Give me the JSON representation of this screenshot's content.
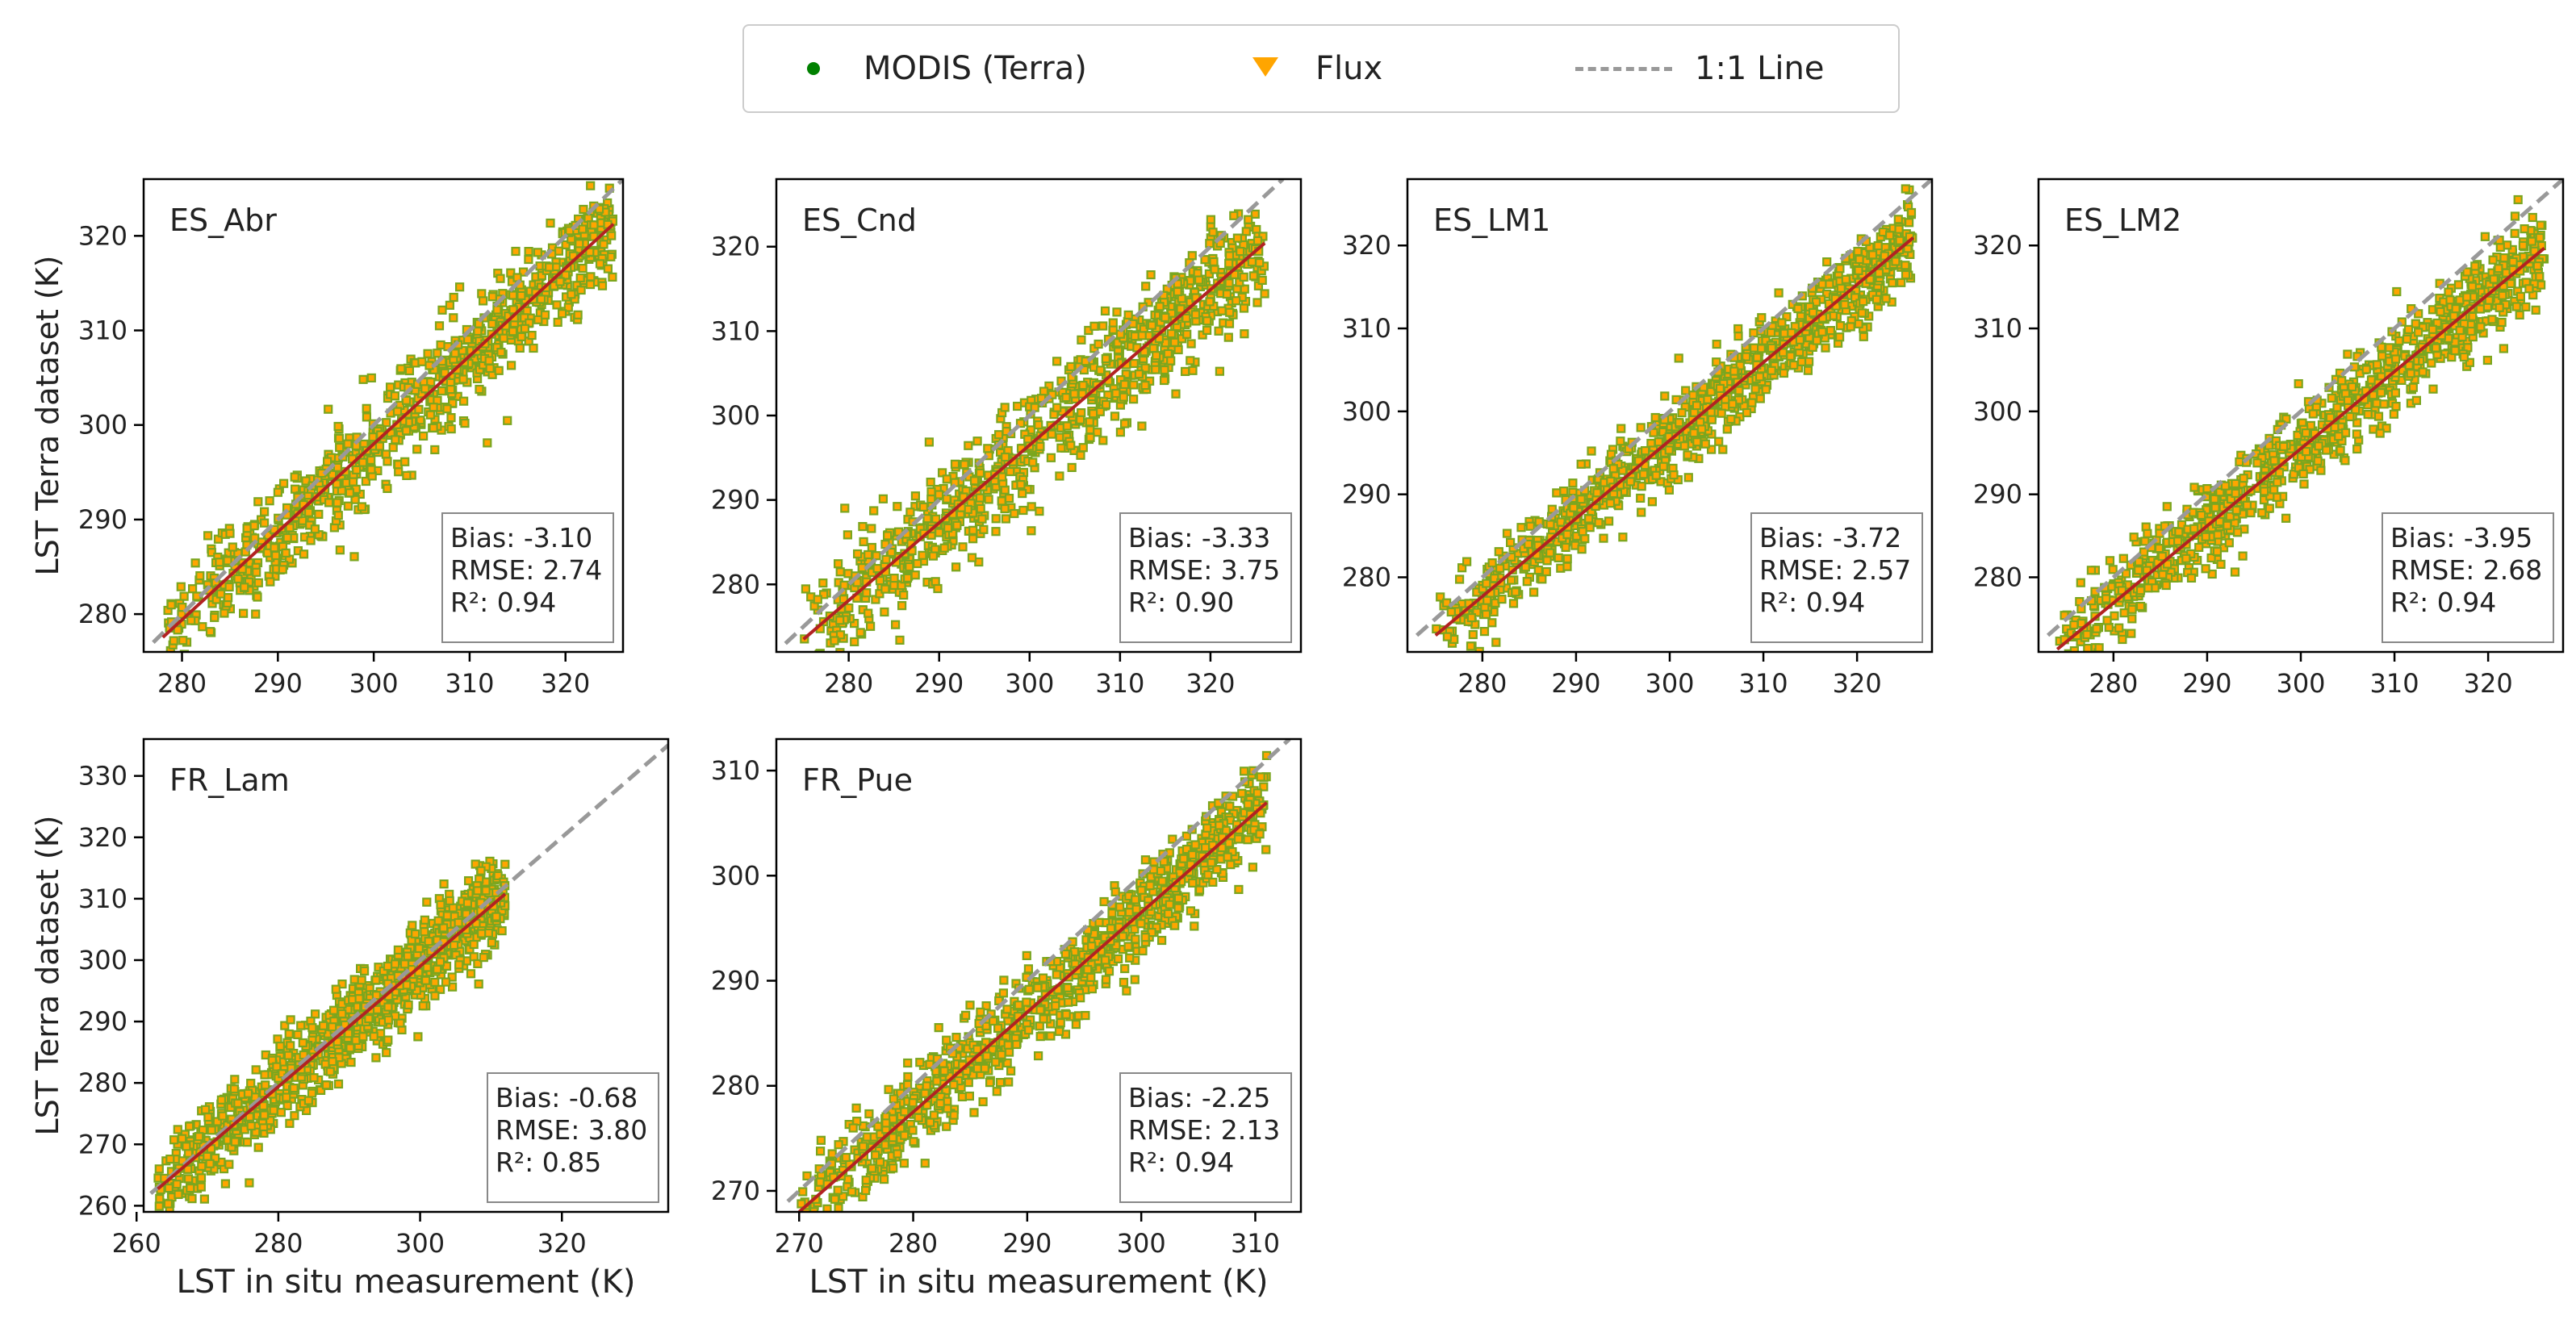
{
  "legend": {
    "modis_label": "MODIS (Terra)",
    "flux_label": "Flux",
    "line_label": "1:1 Line"
  },
  "colors": {
    "modis_point_edge": "#7aa61f",
    "flux_point_fill": "#ffa500",
    "one_to_one": "#999999",
    "fit_line": "#b22222",
    "modis_marker": "#008000"
  },
  "chart_data": [
    {
      "type": "scatter",
      "title": "ES_Abr",
      "xlim": [
        276,
        326
      ],
      "ylim": [
        276,
        326
      ],
      "xticks": [
        280,
        290,
        300,
        310,
        320
      ],
      "yticks": [
        280,
        290,
        300,
        310,
        320
      ],
      "xlabel": "",
      "ylabel": "LST Terra dataset (K)",
      "range": [
        278,
        325
      ],
      "bias": "Bias: -3.10",
      "rmse": "RMSE: 2.74",
      "r2": "R²: 0.94",
      "fit": {
        "slope": 0.93,
        "intercept": 19.0
      },
      "n_points": 900,
      "spread": 2.6
    },
    {
      "type": "scatter",
      "title": "ES_Cnd",
      "xlim": [
        272,
        330
      ],
      "ylim": [
        272,
        328
      ],
      "xticks": [
        280,
        290,
        300,
        310,
        320
      ],
      "yticks": [
        280,
        290,
        300,
        310,
        320
      ],
      "xlabel": "",
      "ylabel": "",
      "range": [
        275,
        326
      ],
      "bias": "Bias: -3.33",
      "rmse": "RMSE: 3.75",
      "r2": "R²: 0.90",
      "fit": {
        "slope": 0.92,
        "intercept": 20.5
      },
      "n_points": 900,
      "spread": 3.3
    },
    {
      "type": "scatter",
      "title": "ES_LM1",
      "xlim": [
        272,
        328
      ],
      "ylim": [
        271,
        328
      ],
      "xticks": [
        280,
        290,
        300,
        310,
        320
      ],
      "yticks": [
        280,
        290,
        300,
        310,
        320
      ],
      "xlabel": "",
      "ylabel": "",
      "range": [
        275,
        326
      ],
      "bias": "Bias: -3.72",
      "rmse": "RMSE: 2.57",
      "r2": "R²: 0.94",
      "fit": {
        "slope": 0.94,
        "intercept": 14.5
      },
      "n_points": 1000,
      "spread": 2.4
    },
    {
      "type": "scatter",
      "title": "ES_LM2",
      "xlim": [
        272,
        328
      ],
      "ylim": [
        271,
        328
      ],
      "xticks": [
        280,
        290,
        300,
        310,
        320
      ],
      "yticks": [
        280,
        290,
        300,
        310,
        320
      ],
      "xlabel": "",
      "ylabel": "",
      "range": [
        274,
        326
      ],
      "bias": "Bias: -3.95",
      "rmse": "RMSE: 2.68",
      "r2": "R²: 0.94",
      "fit": {
        "slope": 0.93,
        "intercept": 16.5
      },
      "n_points": 1000,
      "spread": 2.6
    },
    {
      "type": "scatter",
      "title": "FR_Lam",
      "xlim": [
        261,
        335
      ],
      "ylim": [
        259,
        336
      ],
      "xticks": [
        260,
        280,
        300,
        320
      ],
      "yticks": [
        260,
        270,
        280,
        290,
        300,
        310,
        320,
        330
      ],
      "xlabel": "LST in situ measurement (K)",
      "ylabel": "LST Terra dataset (K)",
      "range": [
        263,
        312
      ],
      "bias": "Bias: -0.68",
      "rmse": "RMSE: 3.80",
      "r2": "R²: 0.85",
      "fit": {
        "slope": 0.98,
        "intercept": 5.0
      },
      "n_points": 1100,
      "spread": 3.4
    },
    {
      "type": "scatter",
      "title": "FR_Pue",
      "xlim": [
        268,
        314
      ],
      "ylim": [
        268,
        313
      ],
      "xticks": [
        270,
        280,
        290,
        300,
        310
      ],
      "yticks": [
        270,
        280,
        290,
        300,
        310
      ],
      "xlabel": "LST in situ measurement (K)",
      "ylabel": "",
      "range": [
        270,
        311
      ],
      "bias": "Bias: -2.25",
      "rmse": "RMSE: 2.13",
      "r2": "R²: 0.94",
      "fit": {
        "slope": 0.95,
        "intercept": 11.5
      },
      "n_points": 1000,
      "spread": 2.0
    }
  ]
}
